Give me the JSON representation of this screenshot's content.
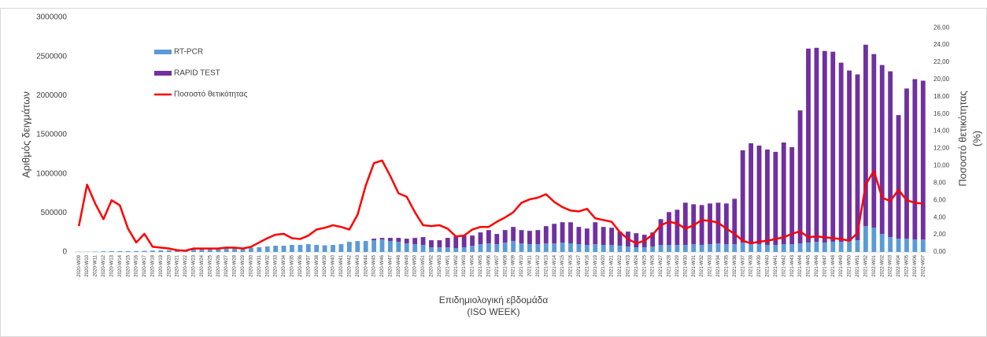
{
  "chart_data": {
    "type": "bar_line",
    "ylabel": "Αριθμός δειγμάτων",
    "y2label": [
      "Ποσοστό θετικότητας",
      "(%)"
    ],
    "xlabel": [
      "Επιδημιολογική εβδομάδα",
      "(ISO WEEK)"
    ],
    "categories": [
      "2020-W09",
      "2020-W10",
      "2020-W11",
      "2020-W12",
      "2020-W13",
      "2020-W14",
      "2020-W15",
      "2020-W16",
      "2020-W17",
      "2020-W18",
      "2020-W19",
      "2020-W20",
      "2020-W21",
      "2020-W22",
      "2020-W23",
      "2020-W24",
      "2020-W25",
      "2020-W26",
      "2020-W27",
      "2020-W28",
      "2020-W29",
      "2020-W30",
      "2020-W31",
      "2020-W32",
      "2020-W33",
      "2020-W34",
      "2020-W35",
      "2020-W36",
      "2020-W37",
      "2020-W38",
      "2020-W39",
      "2020-W40",
      "2020-W41",
      "2020-W42",
      "2020-W43",
      "2020-W44",
      "2020-W45",
      "2020-W46",
      "2020-W47",
      "2020-W48",
      "2020-W49",
      "2020-W50",
      "2020-W51",
      "2020-W52",
      "2020-W53",
      "2021-W01",
      "2021-W02",
      "2021-W03",
      "2021-W04",
      "2021-W05",
      "2021-W06",
      "2021-W07",
      "2021-W08",
      "2021-W09",
      "2021-W10",
      "2021-W11",
      "2021-W12",
      "2021-W13",
      "2021-W14",
      "2021-W15",
      "2021-W16",
      "2021-W17",
      "2021-W18",
      "2021-W19",
      "2021-W20",
      "2021-W21",
      "2021-W22",
      "2021-W23",
      "2021-W24",
      "2021-W25",
      "2021-W26",
      "2021-W27",
      "2021-W28",
      "2021-W29",
      "2021-W30",
      "2021-W31",
      "2021-W32",
      "2021-W33",
      "2021-W34",
      "2021-W35",
      "2021-W36",
      "2021-W37",
      "2021-W38",
      "2021-W39",
      "2021-W40",
      "2021-W41",
      "2021-W42",
      "2021-W43",
      "2021-W44",
      "2021-W45",
      "2021-W46",
      "2021-W47",
      "2021-W48",
      "2021-W49",
      "2021-W50",
      "2021-W51",
      "2021-W52",
      "2022-W01",
      "2022-W02",
      "2022-W03",
      "2022-W04",
      "2022-W05",
      "2022-W06",
      "2022-W07"
    ],
    "series": [
      {
        "name": "RT-PCR",
        "color": "#5b9bd5",
        "kind": "bar",
        "values": [
          2000,
          3000,
          5000,
          8000,
          10000,
          12000,
          10000,
          12000,
          15000,
          18000,
          20000,
          22000,
          15000,
          20000,
          30000,
          35000,
          35000,
          40000,
          45000,
          50000,
          45000,
          55000,
          60000,
          70000,
          80000,
          80000,
          90000,
          90000,
          100000,
          90000,
          85000,
          90000,
          100000,
          130000,
          140000,
          140000,
          150000,
          160000,
          140000,
          130000,
          110000,
          100000,
          90000,
          60000,
          60000,
          60000,
          50000,
          60000,
          80000,
          100000,
          110000,
          100000,
          120000,
          140000,
          110000,
          100000,
          100000,
          110000,
          110000,
          120000,
          110000,
          100000,
          90000,
          100000,
          90000,
          90000,
          80000,
          70000,
          60000,
          60000,
          70000,
          90000,
          90000,
          90000,
          90000,
          100000,
          90000,
          100000,
          110000,
          100000,
          100000,
          120000,
          110000,
          100000,
          90000,
          90000,
          100000,
          100000,
          110000,
          120000,
          130000,
          120000,
          130000,
          130000,
          140000,
          150000,
          330000,
          310000,
          230000,
          190000,
          170000,
          170000,
          160000,
          160000
        ]
      },
      {
        "name": "RAPID TEST",
        "color": "#7030a0",
        "kind": "bar",
        "values": [
          0,
          0,
          0,
          0,
          0,
          0,
          0,
          0,
          0,
          0,
          0,
          0,
          0,
          0,
          0,
          0,
          0,
          0,
          0,
          0,
          0,
          0,
          0,
          0,
          0,
          0,
          0,
          0,
          0,
          0,
          0,
          0,
          0,
          0,
          0,
          0,
          20000,
          20000,
          40000,
          50000,
          60000,
          80000,
          100000,
          90000,
          90000,
          120000,
          150000,
          150000,
          130000,
          150000,
          170000,
          130000,
          160000,
          180000,
          170000,
          170000,
          180000,
          220000,
          250000,
          260000,
          270000,
          220000,
          210000,
          280000,
          230000,
          220000,
          180000,
          190000,
          180000,
          160000,
          180000,
          330000,
          420000,
          450000,
          540000,
          510000,
          510000,
          520000,
          520000,
          520000,
          580000,
          1180000,
          1280000,
          1260000,
          1220000,
          1190000,
          1300000,
          1240000,
          1700000,
          2480000,
          2480000,
          2450000,
          2430000,
          2290000,
          2180000,
          2120000,
          2320000,
          2220000,
          2160000,
          2120000,
          1580000,
          1920000,
          2050000,
          2030000
        ]
      },
      {
        "name": "Ποσοστό θετικότητας",
        "color": "#ff0000",
        "kind": "line",
        "axis": "y2",
        "values": [
          3.0,
          7.8,
          5.6,
          3.8,
          6.0,
          5.4,
          2.7,
          1.1,
          2.1,
          0.6,
          0.5,
          0.4,
          0.2,
          0.15,
          0.4,
          0.4,
          0.4,
          0.4,
          0.5,
          0.5,
          0.4,
          0.6,
          1.1,
          1.6,
          2.0,
          2.1,
          1.6,
          1.5,
          1.9,
          2.6,
          2.8,
          3.1,
          2.9,
          2.6,
          4.3,
          7.7,
          10.3,
          10.6,
          8.8,
          6.8,
          6.4,
          4.6,
          3.1,
          3.0,
          3.1,
          2.7,
          1.8,
          1.9,
          2.6,
          2.9,
          2.9,
          3.5,
          4.0,
          4.6,
          5.7,
          6.1,
          6.3,
          6.7,
          5.8,
          5.2,
          4.8,
          4.7,
          5.0,
          3.9,
          3.7,
          3.5,
          2.3,
          1.5,
          1.0,
          1.3,
          2.0,
          3.1,
          3.5,
          3.3,
          2.7,
          3.1,
          3.7,
          3.6,
          3.4,
          2.7,
          2.1,
          1.3,
          1.0,
          1.2,
          1.3,
          1.5,
          1.7,
          2.1,
          2.4,
          1.7,
          1.8,
          1.7,
          1.6,
          1.5,
          1.3,
          2.2,
          7.8,
          9.4,
          6.3,
          5.9,
          7.2,
          6.0,
          5.7,
          5.6
        ]
      }
    ],
    "ylim": [
      0,
      3000000
    ],
    "yticks": [
      0,
      500000,
      1000000,
      1500000,
      2000000,
      2500000,
      3000000
    ],
    "y2lim": [
      0,
      27.2
    ],
    "y2ticks": [
      {
        "value": 0,
        "label": "0,00"
      },
      {
        "value": 2,
        "label": "2,00"
      },
      {
        "value": 4,
        "label": "4,00"
      },
      {
        "value": 6,
        "label": "6,00"
      },
      {
        "value": 8,
        "label": "8,00"
      },
      {
        "value": 10,
        "label": "10,00"
      },
      {
        "value": 12,
        "label": "12,00"
      },
      {
        "value": 14,
        "label": "14,00"
      },
      {
        "value": 16,
        "label": "16,00"
      },
      {
        "value": 18,
        "label": "18,00"
      },
      {
        "value": 20,
        "label": "20,00"
      },
      {
        "value": 22,
        "label": "22,00"
      },
      {
        "value": 24,
        "label": "24,00"
      },
      {
        "value": 26,
        "label": "26,00"
      }
    ]
  }
}
